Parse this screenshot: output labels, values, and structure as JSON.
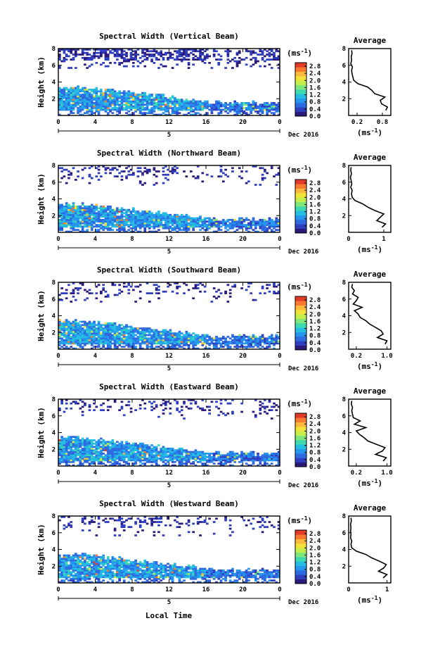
{
  "figure": {
    "x_axis_label": "Local Time"
  },
  "colorbar": {
    "unit": "(ms",
    "unit_exp": "-1",
    "unit_close": ")",
    "tick_labels": [
      "2.8",
      "2.4",
      "2.0",
      "1.6",
      "1.2",
      "0.8",
      "0.4",
      "0.0"
    ],
    "colors": [
      "#2b1a7a",
      "#2f3fbf",
      "#2e6be0",
      "#2597ef",
      "#25bde0",
      "#3fd9b0",
      "#7fe77a",
      "#c6ee4a",
      "#f2e33a",
      "#fbb83a",
      "#f77a2f",
      "#e33b2a"
    ]
  },
  "chart_data": [
    {
      "type": "heatmap",
      "title": "Spectral Width (Vertical Beam)",
      "ylabel": "Height (km)",
      "y_ticks": [
        "8",
        "6",
        "4",
        "2"
      ],
      "ylim": [
        0,
        8
      ],
      "x_ticks": [
        "0",
        "4",
        "8",
        "12",
        "16",
        "20",
        "0"
      ],
      "xlim": [
        0,
        24
      ],
      "date_label": "Dec 2016",
      "day_label": "5",
      "value_range": [
        0,
        3.0
      ],
      "value_unit": "ms-1",
      "profile": {
        "title": "Average",
        "x_ticks": [
          "0.2",
          "0.8"
        ],
        "xlim": [
          0,
          1.0
        ],
        "y_ticks": [
          "8",
          "6",
          "4",
          "2"
        ],
        "xlabel": "(ms",
        "xlabel_exp": "-1",
        "xlabel_close": ")",
        "heights_km": [
          0.6,
          1.0,
          1.4,
          1.8,
          2.2,
          2.6,
          3.0,
          3.4,
          3.8,
          4.2,
          4.6,
          5.0,
          5.4,
          5.8,
          6.2,
          6.6,
          7.0,
          7.4,
          7.8
        ],
        "values": [
          0.88,
          0.92,
          0.78,
          0.75,
          0.86,
          0.62,
          0.55,
          0.45,
          0.22,
          0.12,
          0.1,
          0.08,
          0.07,
          0.09,
          0.05,
          0.07,
          0.06,
          0.08,
          0.07
        ]
      }
    },
    {
      "type": "heatmap",
      "title": "Spectral Width (Northward Beam)",
      "ylabel": "Height (km)",
      "y_ticks": [
        "8",
        "6",
        "4",
        "2"
      ],
      "ylim": [
        0,
        8
      ],
      "x_ticks": [
        "0",
        "4",
        "8",
        "12",
        "16",
        "20",
        "0"
      ],
      "xlim": [
        0,
        24
      ],
      "date_label": "Dec 2016",
      "day_label": "5",
      "value_range": [
        0,
        3.0
      ],
      "value_unit": "ms-1",
      "profile": {
        "title": "Average",
        "x_ticks": [
          "0",
          "1"
        ],
        "xlim": [
          0,
          1.2
        ],
        "y_ticks": [
          "8",
          "6",
          "4",
          "2"
        ],
        "xlabel": "(ms",
        "xlabel_exp": "-1",
        "xlabel_close": ")",
        "heights_km": [
          0.6,
          1.0,
          1.4,
          1.8,
          2.2,
          2.6,
          3.0,
          3.4,
          3.8,
          4.2,
          4.6,
          5.0,
          5.4,
          5.8,
          6.2,
          6.6,
          7.0,
          7.4,
          7.8
        ],
        "values": [
          0.95,
          1.05,
          0.8,
          0.9,
          1.0,
          0.75,
          0.55,
          0.4,
          0.18,
          0.1,
          0.08,
          0.1,
          0.06,
          0.09,
          0.07,
          0.05,
          0.08,
          0.06,
          0.07
        ]
      }
    },
    {
      "type": "heatmap",
      "title": "Spectral Width (Southward Beam)",
      "ylabel": "Height (km)",
      "y_ticks": [
        "8",
        "6",
        "4",
        "2"
      ],
      "ylim": [
        0,
        8
      ],
      "x_ticks": [
        "0",
        "4",
        "8",
        "12",
        "16",
        "20",
        "0"
      ],
      "xlim": [
        0,
        24
      ],
      "date_label": "Dec 2016",
      "day_label": "5",
      "value_range": [
        0,
        3.0
      ],
      "value_unit": "ms-1",
      "profile": {
        "title": "Average",
        "x_ticks": [
          "0.2",
          "1.0"
        ],
        "xlim": [
          0,
          1.1
        ],
        "y_ticks": [
          "8",
          "6",
          "4",
          "2"
        ],
        "xlabel": "(ms",
        "xlabel_exp": "-1",
        "xlabel_close": ")",
        "heights_km": [
          0.6,
          1.0,
          1.4,
          1.8,
          2.2,
          2.6,
          3.0,
          3.4,
          3.8,
          4.2,
          4.6,
          5.0,
          5.4,
          5.8,
          6.2,
          6.6,
          7.0,
          7.4,
          7.8
        ],
        "values": [
          0.95,
          1.0,
          0.75,
          0.9,
          0.85,
          0.7,
          0.55,
          0.45,
          0.3,
          0.25,
          0.15,
          0.35,
          0.12,
          0.2,
          0.25,
          0.1,
          0.15,
          0.08,
          0.1
        ]
      }
    },
    {
      "type": "heatmap",
      "title": "Spectral Width (Eastward Beam)",
      "ylabel": "Height (km)",
      "y_ticks": [
        "8",
        "6",
        "4",
        "2"
      ],
      "ylim": [
        0,
        8
      ],
      "x_ticks": [
        "0",
        "4",
        "8",
        "12",
        "16",
        "20",
        "0"
      ],
      "xlim": [
        0,
        24
      ],
      "date_label": "Dec 2016",
      "day_label": "5",
      "value_range": [
        0,
        3.0
      ],
      "value_unit": "ms-1",
      "profile": {
        "title": "Average",
        "x_ticks": [
          "0.2",
          "1.0"
        ],
        "xlim": [
          0,
          1.1
        ],
        "y_ticks": [
          "8",
          "6",
          "4",
          "2"
        ],
        "xlabel": "(ms",
        "xlabel_exp": "-1",
        "xlabel_close": ")",
        "heights_km": [
          0.6,
          1.0,
          1.4,
          1.8,
          2.2,
          2.6,
          3.0,
          3.4,
          3.8,
          4.2,
          4.6,
          5.0,
          5.4,
          5.8,
          6.2,
          6.6,
          7.0,
          7.4,
          7.8
        ],
        "values": [
          0.9,
          0.98,
          0.7,
          0.88,
          0.95,
          0.72,
          0.5,
          0.4,
          0.28,
          0.2,
          0.45,
          0.15,
          0.3,
          0.12,
          0.1,
          0.08,
          0.1,
          0.07,
          0.08
        ]
      }
    },
    {
      "type": "heatmap",
      "title": "Spectral Width (Westward Beam)",
      "ylabel": "Height (km)",
      "y_ticks": [
        "8",
        "6",
        "4",
        "2"
      ],
      "ylim": [
        0,
        8
      ],
      "x_ticks": [
        "0",
        "4",
        "8",
        "12",
        "16",
        "20",
        "0"
      ],
      "xlim": [
        0,
        24
      ],
      "date_label": "Dec 2016",
      "day_label": "5",
      "value_range": [
        0,
        3.0
      ],
      "value_unit": "ms-1",
      "profile": {
        "title": "Average",
        "x_ticks": [
          "0",
          "1"
        ],
        "xlim": [
          0,
          1.1
        ],
        "y_ticks": [
          "8",
          "6",
          "4",
          "2"
        ],
        "xlabel": "(ms",
        "xlabel_exp": "-1",
        "xlabel_close": ")",
        "heights_km": [
          0.6,
          1.0,
          1.4,
          1.8,
          2.2,
          2.6,
          3.0,
          3.4,
          3.8,
          4.2,
          4.6,
          5.0,
          5.4,
          5.8,
          6.2,
          6.6,
          7.0,
          7.4,
          7.8
        ],
        "values": [
          0.9,
          1.0,
          0.78,
          0.92,
          0.98,
          0.8,
          0.6,
          0.45,
          0.2,
          0.08,
          0.06,
          0.08,
          0.05,
          0.06,
          0.05,
          0.06,
          0.05,
          0.07,
          0.06
        ]
      }
    }
  ]
}
